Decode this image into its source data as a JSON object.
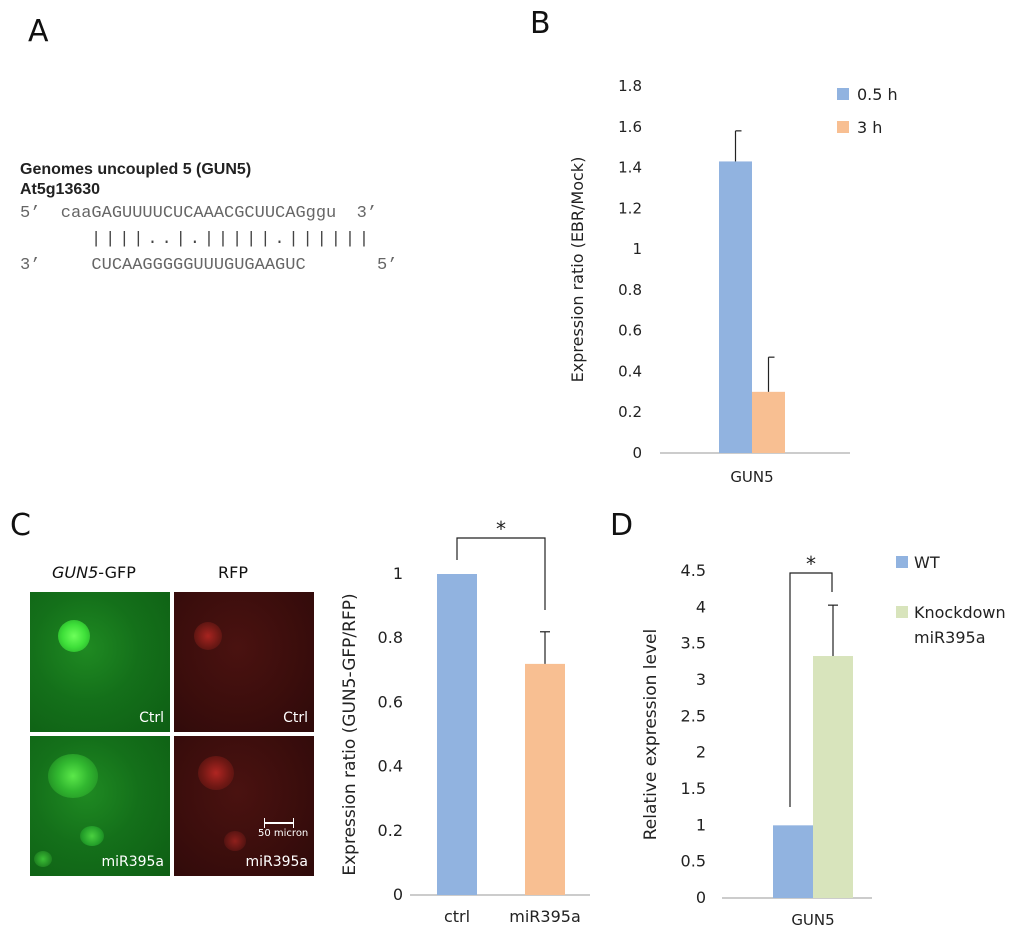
{
  "panels": {
    "A": {
      "letter": "A",
      "title_line1": "Genomes uncoupled 5 (GUN5)",
      "title_line2": "At5g13630",
      "seq_top": "5’  caaGAGUUUUCUCAAACGCUUCAGggu  3’",
      "seq_bars": "||||..|.|||||.||||||",
      "seq_bottom": "3’     CUCAAGGGGGUUUGUGAAGUC       5’"
    },
    "B": {
      "letter": "B"
    },
    "C": {
      "letter": "C",
      "col1_head_italic": "GUN5",
      "col1_head_rest": "-GFP",
      "col2_head": "RFP",
      "label_ctrl": "Ctrl",
      "label_mir": "miR395a",
      "scale_bar": "50 micron"
    },
    "D": {
      "letter": "D"
    }
  },
  "chart_data": [
    {
      "id": "B",
      "type": "bar",
      "categories": [
        "GUN5"
      ],
      "series": [
        {
          "name": "0.5 h",
          "values": [
            1.43
          ],
          "errors": [
            0.15
          ],
          "color": "#91b3e0"
        },
        {
          "name": "3 h",
          "values": [
            0.3
          ],
          "errors": [
            0.17
          ],
          "color": "#f8bf92"
        }
      ],
      "ylabel": "Expression ratio (EBR/Mock)",
      "ylim": [
        0,
        1.8
      ],
      "yticks": [
        "0",
        "0.2",
        "0.4",
        "0.6",
        "0.8",
        "1",
        "1.2",
        "1.4",
        "1.6",
        "1.8"
      ],
      "legend": "top-right"
    },
    {
      "id": "C",
      "type": "bar",
      "categories": [
        "ctrl",
        "miR395a"
      ],
      "values": [
        1.0,
        0.72
      ],
      "errors": [
        0,
        0.1
      ],
      "colors": [
        "#91b3e0",
        "#f8bf92"
      ],
      "ylabel": "Expression ratio (GUN5-GFP/RFP)",
      "ylim": [
        0,
        1
      ],
      "yticks": [
        "0",
        "0.2",
        "0.4",
        "0.6",
        "0.8",
        "1"
      ],
      "significance": "*"
    },
    {
      "id": "D",
      "type": "bar",
      "categories": [
        "GUN5"
      ],
      "series": [
        {
          "name": "WT",
          "values": [
            1.0
          ],
          "errors": [
            0
          ],
          "color": "#91b3e0"
        },
        {
          "name": "Knockdown miR395a",
          "values": [
            3.33
          ],
          "errors": [
            0.7
          ],
          "color": "#d8e4bc"
        }
      ],
      "legend_lines": [
        "WT",
        "Knockdown",
        "miR395a"
      ],
      "ylabel": "Relative expression level",
      "ylim": [
        0,
        4.5
      ],
      "yticks": [
        "0",
        "0.5",
        "1",
        "1.5",
        "2",
        "2.5",
        "3",
        "3.5",
        "4",
        "4.5"
      ],
      "significance": "*",
      "legend": "right"
    }
  ]
}
